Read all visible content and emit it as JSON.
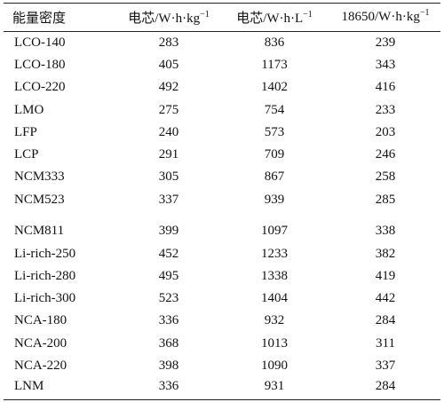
{
  "table": {
    "header": [
      {
        "text": "能量密度"
      },
      {
        "text": "电芯/W·h·kg",
        "sup": "−1"
      },
      {
        "text": "电芯/W·h·L",
        "sup": "−1"
      },
      {
        "text": "18650/W·h·kg",
        "sup": "−1"
      }
    ],
    "rows": [
      [
        "LCO-140",
        283,
        836,
        239
      ],
      [
        "LCO-180",
        405,
        1173,
        343
      ],
      [
        "LCO-220",
        492,
        1402,
        416
      ],
      [
        "LMO",
        275,
        754,
        233
      ],
      [
        "LFP",
        240,
        573,
        203
      ],
      [
        "LCP",
        291,
        709,
        246
      ],
      [
        "NCM333",
        305,
        867,
        258
      ],
      [
        "NCM523",
        337,
        939,
        285
      ],
      [
        "NCM811",
        399,
        1097,
        338
      ],
      [
        "Li-rich-250",
        452,
        1233,
        382
      ],
      [
        "Li-rich-280",
        495,
        1338,
        419
      ],
      [
        "Li-rich-300",
        523,
        1404,
        442
      ],
      [
        "NCA-180",
        336,
        932,
        284
      ],
      [
        "NCA-200",
        368,
        1013,
        311
      ],
      [
        "NCA-220",
        398,
        1090,
        337
      ],
      [
        "LNM",
        336,
        931,
        284
      ]
    ]
  }
}
